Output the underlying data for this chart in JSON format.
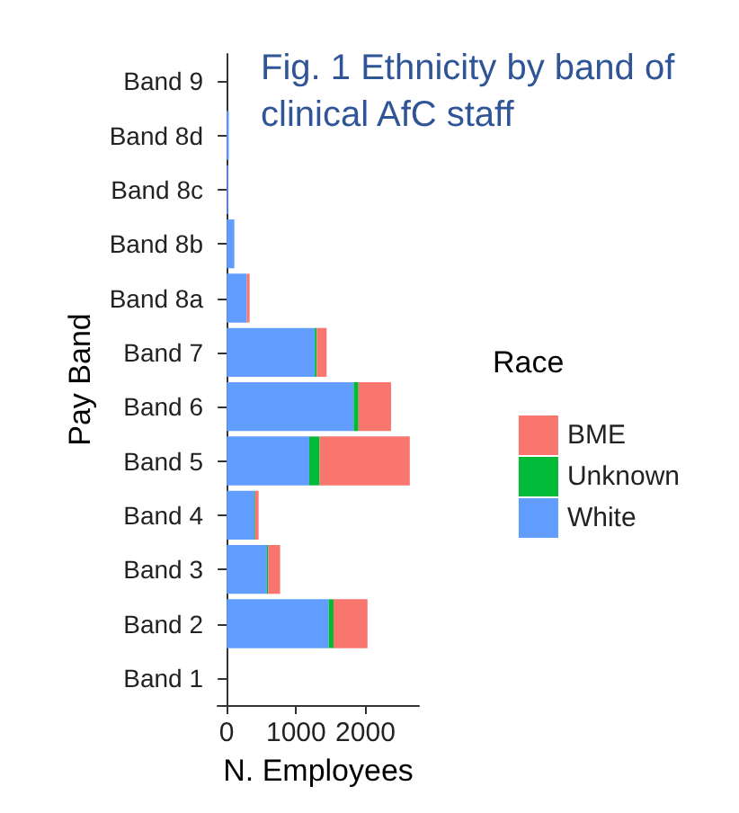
{
  "chart_data": {
    "type": "bar",
    "orientation": "horizontal",
    "stacked": true,
    "title": "Fig. 1 Ethnicity by band of\nclinical AfC staff",
    "xlabel": "N. Employees",
    "ylabel": "Pay Band",
    "legend_title": "Race",
    "legend": "right",
    "grid": false,
    "categories": [
      "Band 9",
      "Band 8d",
      "Band 8c",
      "Band 8b",
      "Band 8a",
      "Band 7",
      "Band 6",
      "Band 5",
      "Band 4",
      "Band 3",
      "Band 2",
      "Band 1"
    ],
    "series": [
      {
        "name": "White",
        "color": "#619cff",
        "values": [
          0,
          30,
          20,
          110,
          290,
          1270,
          1830,
          1190,
          400,
          580,
          1470,
          0
        ]
      },
      {
        "name": "Unknown",
        "color": "#00ba38",
        "values": [
          0,
          0,
          0,
          0,
          null,
          30,
          70,
          150,
          10,
          20,
          70,
          0
        ]
      },
      {
        "name": "BME",
        "color": "#f8766d",
        "values": [
          0,
          0,
          0,
          null,
          40,
          140,
          470,
          1300,
          50,
          170,
          490,
          0
        ]
      }
    ],
    "xlim": [
      -132,
      2772
    ],
    "xticks": [
      0,
      1000,
      2000
    ]
  }
}
